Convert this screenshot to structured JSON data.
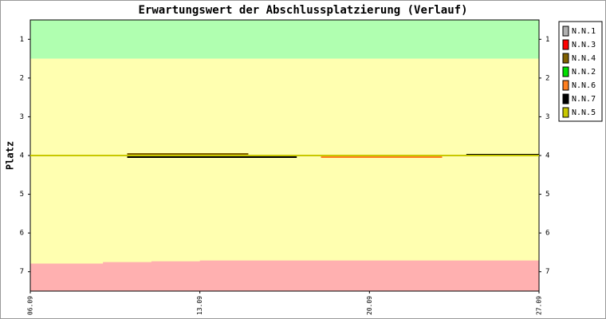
{
  "chart_data": {
    "type": "line",
    "title": "Erwartungswert der Abschlussplatzierung (Verlauf)",
    "y_label": "Platz",
    "x": [
      0,
      1,
      2,
      3,
      4,
      5,
      6,
      7,
      8,
      9,
      10,
      11,
      12,
      13,
      14,
      15,
      16,
      17,
      18,
      19,
      20,
      21
    ],
    "xlim": [
      0,
      21
    ],
    "xticks": [
      {
        "value": 0,
        "label": "06.09"
      },
      {
        "value": 7,
        "label": "13.09"
      },
      {
        "value": 14,
        "label": "20.09"
      },
      {
        "value": 21,
        "label": "27.09"
      }
    ],
    "ylim": [
      0.5,
      7.5
    ],
    "y_inverted": true,
    "yticks": [
      1,
      2,
      3,
      4,
      5,
      6,
      7
    ],
    "bands": [
      {
        "color": "#b0ffb0",
        "range": [
          0.5,
          1.5
        ]
      },
      {
        "color": "#ffffb0",
        "range": [
          1.5,
          7.5
        ]
      }
    ],
    "relegation_zone": {
      "color": "#ffb0b0",
      "values": [
        6.79,
        6.79,
        6.79,
        6.75,
        6.75,
        6.73,
        6.73,
        6.71,
        6.71,
        6.71,
        6.71,
        6.71,
        6.71,
        6.71,
        6.71,
        6.71,
        6.71,
        6.71,
        6.71,
        6.71,
        6.71,
        6.71
      ]
    },
    "legend": "outside-right",
    "series": [
      {
        "name": "N.N.1",
        "color": "#b0b0b0",
        "values": [
          4,
          4,
          4,
          4,
          4,
          4,
          4,
          4,
          4,
          4,
          4,
          4,
          4,
          4,
          4,
          4,
          4,
          4,
          4,
          4,
          4,
          4
        ]
      },
      {
        "name": "N.N.3",
        "color": "#ff0000",
        "values": [
          4,
          4,
          4,
          4,
          4,
          4,
          4,
          4,
          4,
          4,
          4,
          4,
          4,
          4,
          4,
          4,
          4,
          4,
          4,
          4,
          4,
          4
        ]
      },
      {
        "name": "N.N.4",
        "color": "#806000",
        "values": [
          null,
          null,
          null,
          null,
          3.96,
          3.96,
          3.96,
          3.96,
          3.96,
          null,
          null,
          null,
          null,
          null,
          null,
          null,
          null,
          null,
          null,
          null,
          null,
          null
        ]
      },
      {
        "name": "N.N.2",
        "color": "#00e000",
        "values": [
          4,
          4,
          4,
          4,
          4,
          4,
          4,
          4,
          4,
          4,
          4,
          4,
          4,
          4,
          4,
          4,
          4,
          4,
          4,
          4,
          4,
          4
        ]
      },
      {
        "name": "N.N.6",
        "color": "#ff8020",
        "values": [
          null,
          null,
          null,
          null,
          null,
          null,
          null,
          null,
          null,
          null,
          null,
          null,
          4.04,
          4.04,
          4.04,
          4.04,
          4.04,
          null,
          null,
          null,
          null,
          null
        ]
      },
      {
        "name": "N.N.7",
        "color": "#000000",
        "values": [
          null,
          null,
          null,
          null,
          4.04,
          4.04,
          4.04,
          4.04,
          4.04,
          4.04,
          4.04,
          null,
          null,
          null,
          null,
          null,
          null,
          null,
          3.98,
          3.98,
          3.98,
          null
        ]
      },
      {
        "name": "N.N.5",
        "color": "#c8c800",
        "values": [
          4,
          4,
          4,
          4,
          4,
          4,
          4,
          4,
          4,
          4,
          4,
          4,
          4,
          4,
          4,
          4,
          4,
          4,
          4,
          4,
          4,
          4
        ]
      }
    ]
  }
}
